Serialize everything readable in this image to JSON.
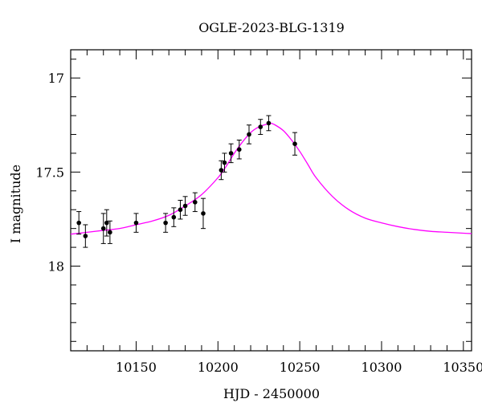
{
  "chart_data": {
    "type": "scatter",
    "title": "OGLE-2023-BLG-1319",
    "xlabel": "HJD - 2450000",
    "ylabel": "I magnitude",
    "xlim": [
      10110,
      10355
    ],
    "ylim": [
      18.45,
      16.85
    ],
    "y_inverted": true,
    "grid": false,
    "x_ticks": [
      10150,
      10200,
      10250,
      10300,
      10350
    ],
    "y_ticks": [
      17,
      17.5,
      18
    ],
    "x_minor_step": 10,
    "y_minor_step": 0.1,
    "colors": {
      "model": "#ff00ff",
      "points": "#000000",
      "axes": "#000000"
    },
    "points": [
      {
        "x": 10115,
        "y": 17.77,
        "err": 0.06
      },
      {
        "x": 10119,
        "y": 17.84,
        "err": 0.06
      },
      {
        "x": 10130,
        "y": 17.8,
        "err": 0.08
      },
      {
        "x": 10132,
        "y": 17.77,
        "err": 0.07
      },
      {
        "x": 10134,
        "y": 17.82,
        "err": 0.06
      },
      {
        "x": 10150,
        "y": 17.77,
        "err": 0.05
      },
      {
        "x": 10168,
        "y": 17.77,
        "err": 0.05
      },
      {
        "x": 10173,
        "y": 17.74,
        "err": 0.05
      },
      {
        "x": 10177,
        "y": 17.7,
        "err": 0.05
      },
      {
        "x": 10180,
        "y": 17.68,
        "err": 0.05
      },
      {
        "x": 10186,
        "y": 17.66,
        "err": 0.05
      },
      {
        "x": 10191,
        "y": 17.72,
        "err": 0.08
      },
      {
        "x": 10202,
        "y": 17.49,
        "err": 0.05
      },
      {
        "x": 10204,
        "y": 17.45,
        "err": 0.05
      },
      {
        "x": 10208,
        "y": 17.4,
        "err": 0.05
      },
      {
        "x": 10213,
        "y": 17.38,
        "err": 0.05
      },
      {
        "x": 10219,
        "y": 17.3,
        "err": 0.05
      },
      {
        "x": 10226,
        "y": 17.26,
        "err": 0.04
      },
      {
        "x": 10231,
        "y": 17.24,
        "err": 0.04
      },
      {
        "x": 10247,
        "y": 17.35,
        "err": 0.06
      }
    ],
    "model": {
      "x": [
        10110,
        10120,
        10130,
        10140,
        10150,
        10160,
        10170,
        10180,
        10190,
        10200,
        10205,
        10210,
        10215,
        10220,
        10225,
        10230,
        10232,
        10235,
        10240,
        10245,
        10250,
        10255,
        10260,
        10270,
        10280,
        10290,
        10300,
        10310,
        10320,
        10330,
        10340,
        10350,
        10355
      ],
      "y": [
        17.83,
        17.82,
        17.81,
        17.8,
        17.78,
        17.76,
        17.73,
        17.68,
        17.62,
        17.53,
        17.47,
        17.4,
        17.34,
        17.29,
        17.26,
        17.245,
        17.24,
        17.25,
        17.28,
        17.33,
        17.39,
        17.46,
        17.53,
        17.63,
        17.7,
        17.745,
        17.77,
        17.79,
        17.805,
        17.815,
        17.82,
        17.825,
        17.827
      ]
    }
  }
}
